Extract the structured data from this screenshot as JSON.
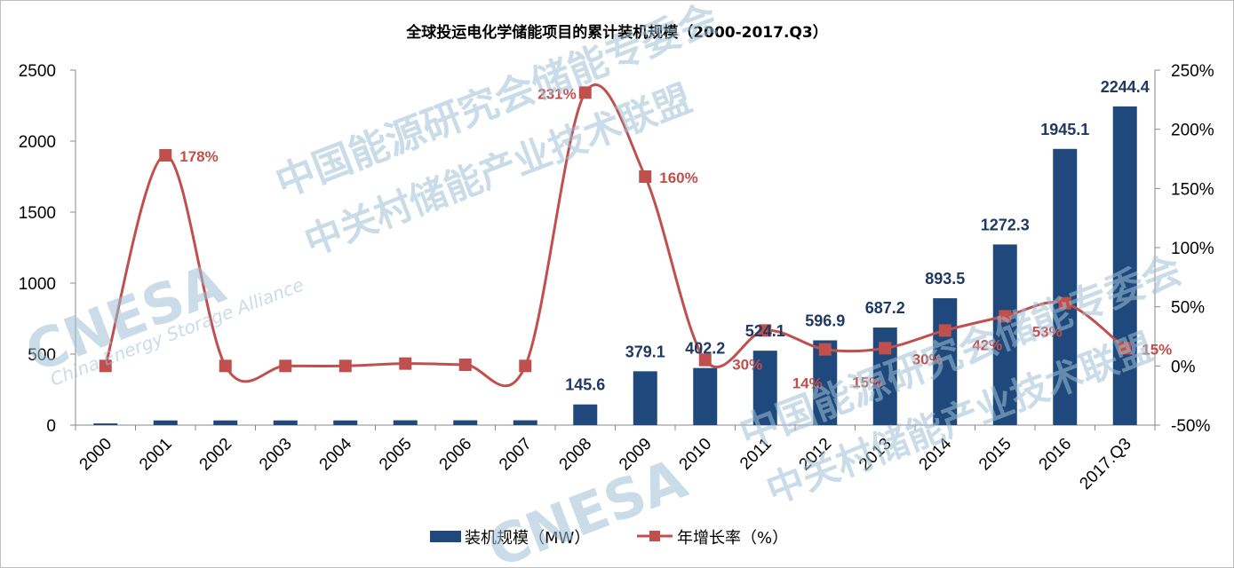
{
  "title": "全球投运电化学储能项目的累计装机规模（2000-2017.Q3）",
  "watermark": {
    "logo": "CNESA",
    "line1": "中国能源研究会储能专委会",
    "line2": "中关村储能产业技术联盟",
    "english": "China Energy Storage Alliance",
    "color": "#9ec0d6"
  },
  "chart_data": {
    "type": "bar",
    "categories": [
      "2000",
      "2001",
      "2002",
      "2003",
      "2004",
      "2005",
      "2006",
      "2007",
      "2008",
      "2009",
      "2010",
      "2011",
      "2012",
      "2013",
      "2014",
      "2015",
      "2016",
      "2017.Q3"
    ],
    "series": [
      {
        "name": "装机规模（MW）",
        "type": "bar",
        "axis": "left",
        "color": "#1f497d",
        "values": [
          12,
          33,
          33,
          33,
          33,
          34,
          34,
          34,
          145.6,
          379.1,
          402.2,
          524.1,
          596.9,
          687.2,
          893.5,
          1272.3,
          1945.1,
          2244.4
        ],
        "labels": [
          "",
          "",
          "",
          "",
          "",
          "",
          "",
          "",
          "145.6",
          "379.1",
          "402.2",
          "524.1",
          "596.9",
          "687.2",
          "893.5",
          "1272.3",
          "1945.1",
          "2244.4"
        ]
      },
      {
        "name": "年增长率（%）",
        "type": "line",
        "axis": "right",
        "color": "#c0504d",
        "values": [
          0,
          178,
          0,
          0,
          0,
          2,
          1,
          0,
          231,
          160,
          5,
          30,
          14,
          15,
          30,
          42,
          53,
          15
        ],
        "labels": [
          "",
          "178%",
          "",
          "",
          "",
          "",
          "",
          "",
          "231%",
          "160%",
          "",
          "30%",
          "14%",
          "15%",
          "30%",
          "42%",
          "53%",
          "15%"
        ]
      }
    ],
    "y_left": {
      "min": 0,
      "max": 2500,
      "ticks": [
        "0",
        "500",
        "1000",
        "1500",
        "2000",
        "2500"
      ]
    },
    "y_right": {
      "min": -50,
      "max": 250,
      "ticks": [
        "-50%",
        "0%",
        "50%",
        "100%",
        "150%",
        "200%",
        "250%"
      ]
    },
    "grid": false,
    "legend_position": "bottom"
  }
}
